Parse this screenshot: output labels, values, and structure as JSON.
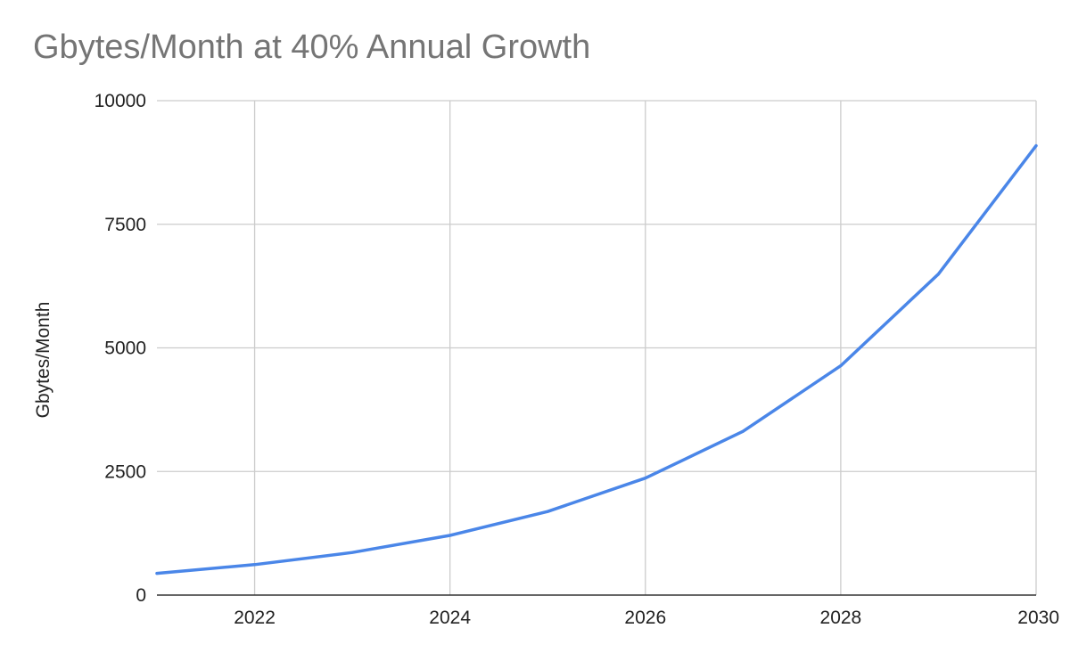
{
  "chart_data": {
    "type": "line",
    "title": "Gbytes/Month at 40% Annual Growth",
    "xlabel": "",
    "ylabel": "Gbytes/Month",
    "x": [
      2021,
      2022,
      2023,
      2024,
      2025,
      2026,
      2027,
      2028,
      2029,
      2030
    ],
    "series": [
      {
        "values": [
          440,
          616,
          862,
          1207,
          1690,
          2366,
          3312,
          4637,
          6492,
          9088
        ]
      }
    ],
    "xlim": [
      2021,
      2030
    ],
    "ylim": [
      0,
      10000
    ],
    "x_ticks": [
      "2022",
      "2024",
      "2026",
      "2028",
      "2030"
    ],
    "y_ticks": [
      "0",
      "2500",
      "5000",
      "7500",
      "10000"
    ],
    "grid": true,
    "legend": "none",
    "colors": {
      "line": "#4a86e8",
      "grid": "#cccccc",
      "axis": "#333333",
      "title": "#757575"
    }
  }
}
